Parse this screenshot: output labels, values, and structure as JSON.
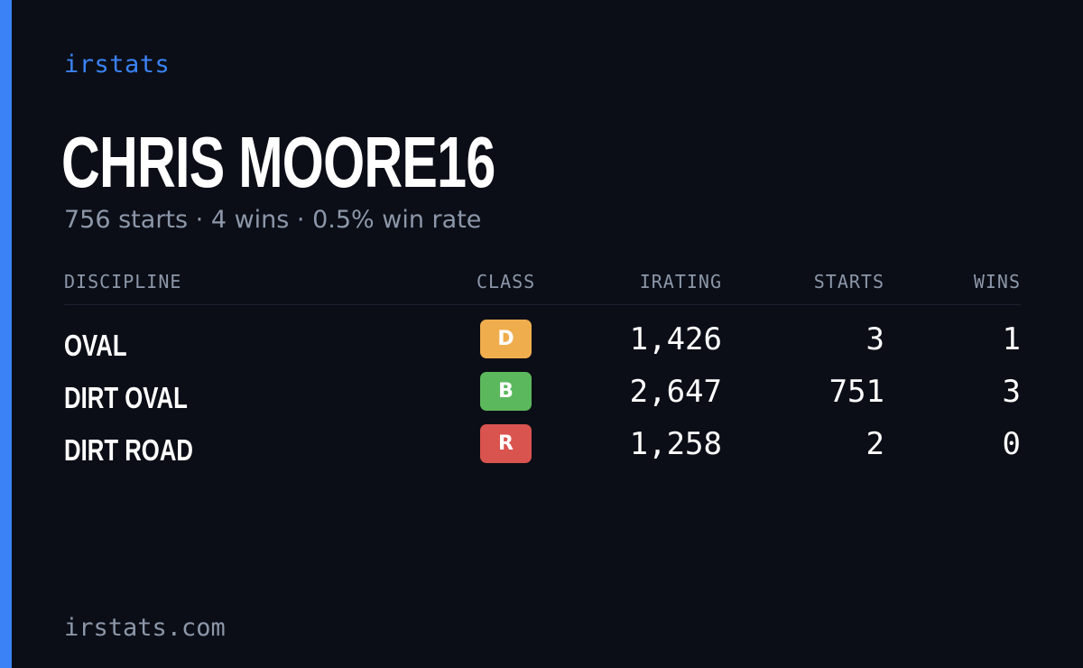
{
  "brand": "irstats",
  "driver": {
    "name": "CHRIS MOORE16",
    "summary": "756 starts · 4 wins · 0.5% win rate"
  },
  "table": {
    "headers": {
      "discipline": "DISCIPLINE",
      "class": "CLASS",
      "irating": "IRATING",
      "starts": "STARTS",
      "wins": "WINS"
    },
    "rows": [
      {
        "discipline": "OVAL",
        "class": "D",
        "class_color": "#f0ad4e",
        "irating": "1,426",
        "starts": "3",
        "wins": "1"
      },
      {
        "discipline": "DIRT OVAL",
        "class": "B",
        "class_color": "#5cb85c",
        "irating": "2,647",
        "starts": "751",
        "wins": "3"
      },
      {
        "discipline": "DIRT ROAD",
        "class": "R",
        "class_color": "#d9534f",
        "irating": "1,258",
        "starts": "2",
        "wins": "0"
      }
    ]
  },
  "footer": "irstats.com",
  "colors": {
    "accent": "#3b82f6",
    "background": "#0b0e16",
    "muted_text": "#8c97a9"
  }
}
